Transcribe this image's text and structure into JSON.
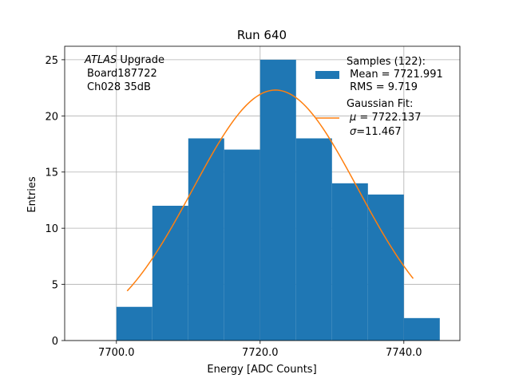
{
  "chart_data": {
    "type": "bar",
    "title": "Run 640",
    "xlabel": "Energy [ADC Counts]",
    "ylabel": "Entries",
    "xlim": [
      7692.8,
      7747.8
    ],
    "ylim": [
      0,
      26.2
    ],
    "xticks": [
      7700,
      7720,
      7740
    ],
    "xtick_labels": [
      "7700.0",
      "7720.0",
      "7740.0"
    ],
    "yticks": [
      0,
      5,
      10,
      15,
      20,
      25
    ],
    "ytick_labels": [
      "0",
      "5",
      "10",
      "15",
      "20",
      "25"
    ],
    "grid": true,
    "bin_width": 5,
    "bins": [
      {
        "x0": 7700,
        "x1": 7705,
        "count": 3
      },
      {
        "x0": 7705,
        "x1": 7710,
        "count": 12
      },
      {
        "x0": 7710,
        "x1": 7715,
        "count": 18
      },
      {
        "x0": 7715,
        "x1": 7720,
        "count": 17
      },
      {
        "x0": 7720,
        "x1": 7725,
        "count": 25
      },
      {
        "x0": 7725,
        "x1": 7730,
        "count": 18
      },
      {
        "x0": 7730,
        "x1": 7735,
        "count": 14
      },
      {
        "x0": 7735,
        "x1": 7740,
        "count": 13
      },
      {
        "x0": 7740,
        "x1": 7745,
        "count": 2
      }
    ],
    "fit": {
      "mu": 7722.137,
      "sigma": 11.467,
      "amplitude": 22.3,
      "x_range": [
        7701.5,
        7741.3
      ]
    },
    "colors": {
      "bars": "#1f77b4",
      "fit": "#ff7f0e",
      "grid": "#b0b0b0"
    },
    "annotation": {
      "italic": "ATLAS",
      "rest": " Upgrade",
      "lines": [
        "Board187722",
        "Ch028 35dB"
      ]
    },
    "legend": {
      "placement": "upper-right",
      "samples_label": "Samples (122):",
      "samples_lines": [
        " Mean = 7721.991",
        " RMS = 9.719"
      ],
      "fit_label": "Gaussian Fit:",
      "fit_mu_prefix": "μ",
      "fit_mu_value": " = 7722.137",
      "fit_sigma_prefix": "σ",
      "fit_sigma_value": "=11.467"
    }
  }
}
